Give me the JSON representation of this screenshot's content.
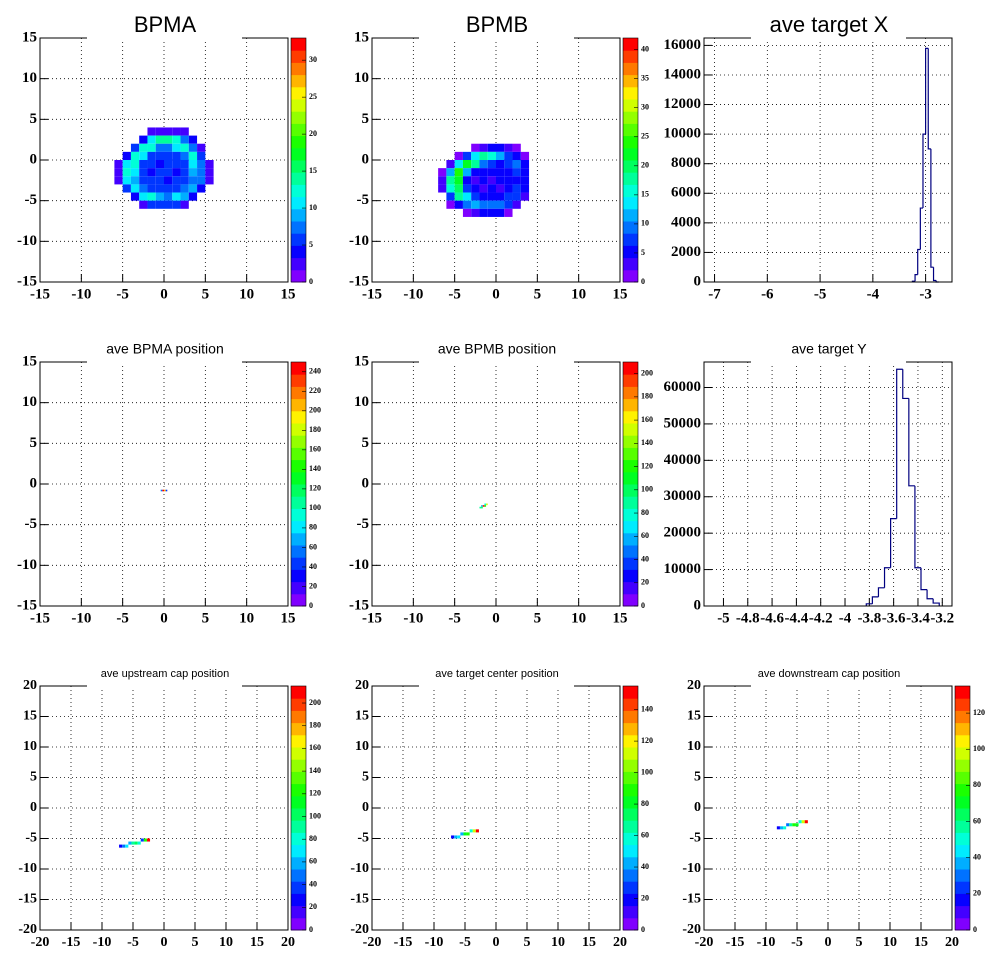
{
  "chart_data": [
    {
      "type": "heatmap",
      "title": "BPMA",
      "xlim": [
        -15,
        15
      ],
      "ylim": [
        -15,
        15
      ],
      "xticks": [
        -15,
        -10,
        -5,
        0,
        5,
        10,
        15
      ],
      "yticks": [
        -15,
        -10,
        -5,
        0,
        5,
        10,
        15
      ],
      "grid": true,
      "x": [
        -5.5,
        -4.5,
        -3.5,
        -2.5,
        -1.5,
        -0.5,
        0.5,
        1.5,
        2.5,
        3.5,
        4.5,
        5.5
      ],
      "y": [
        3.5,
        2.5,
        1.5,
        0.5,
        -0.5,
        -1.5,
        -2.5,
        -3.5,
        -4.5,
        -5.5
      ],
      "z": [
        [
          0,
          0,
          0,
          0,
          2,
          3,
          3,
          3,
          2,
          0,
          0,
          0
        ],
        [
          0,
          0,
          0,
          4,
          10,
          14,
          14,
          12,
          8,
          4,
          0,
          0
        ],
        [
          0,
          0,
          5,
          12,
          12,
          8,
          8,
          10,
          12,
          8,
          3,
          0
        ],
        [
          0,
          4,
          12,
          10,
          6,
          5,
          6,
          5,
          7,
          12,
          5,
          0
        ],
        [
          3,
          10,
          12,
          6,
          5,
          4,
          5,
          6,
          5,
          10,
          8,
          2
        ],
        [
          3,
          12,
          10,
          5,
          4,
          5,
          5,
          4,
          6,
          9,
          8,
          2
        ],
        [
          2,
          10,
          9,
          5,
          6,
          5,
          4,
          5,
          5,
          8,
          7,
          2
        ],
        [
          0,
          5,
          10,
          8,
          5,
          6,
          5,
          6,
          7,
          9,
          4,
          0
        ],
        [
          0,
          0,
          4,
          10,
          12,
          9,
          8,
          10,
          9,
          4,
          0,
          0
        ],
        [
          0,
          0,
          0,
          2,
          5,
          6,
          6,
          5,
          2,
          0,
          0,
          0
        ]
      ],
      "zlim": [
        0,
        33
      ],
      "zticks": [
        0,
        5,
        10,
        15,
        20,
        25,
        30
      ]
    },
    {
      "type": "heatmap",
      "title": "BPMB",
      "xlim": [
        -15,
        15
      ],
      "ylim": [
        -15,
        15
      ],
      "xticks": [
        -15,
        -10,
        -5,
        0,
        5,
        10,
        15
      ],
      "yticks": [
        -15,
        -10,
        -5,
        0,
        5,
        10,
        15
      ],
      "grid": true,
      "x": [
        -6.5,
        -5.5,
        -4.5,
        -3.5,
        -2.5,
        -1.5,
        -0.5,
        0.5,
        1.5,
        2.5,
        3.5,
        4.5
      ],
      "y": [
        1.5,
        0.5,
        -0.5,
        -1.5,
        -2.5,
        -3.5,
        -4.5,
        -5.5,
        -6.5
      ],
      "z": [
        [
          0,
          0,
          0,
          0,
          2,
          4,
          5,
          5,
          4,
          2,
          0,
          0
        ],
        [
          0,
          0,
          2,
          8,
          14,
          18,
          16,
          12,
          8,
          5,
          2,
          0
        ],
        [
          0,
          3,
          14,
          22,
          18,
          10,
          7,
          6,
          8,
          10,
          5,
          0
        ],
        [
          2,
          12,
          25,
          12,
          6,
          5,
          5,
          6,
          5,
          8,
          6,
          0
        ],
        [
          3,
          18,
          22,
          6,
          4,
          5,
          4,
          5,
          5,
          6,
          6,
          0
        ],
        [
          3,
          16,
          20,
          8,
          5,
          4,
          5,
          4,
          6,
          7,
          5,
          0
        ],
        [
          0,
          8,
          18,
          14,
          7,
          5,
          5,
          6,
          7,
          8,
          3,
          0
        ],
        [
          0,
          2,
          6,
          10,
          12,
          10,
          9,
          10,
          8,
          3,
          0,
          0
        ],
        [
          0,
          0,
          0,
          2,
          4,
          6,
          6,
          5,
          2,
          0,
          0,
          0
        ]
      ],
      "zlim": [
        0,
        42
      ],
      "zticks": [
        0,
        5,
        10,
        15,
        20,
        25,
        30,
        35,
        40
      ]
    },
    {
      "type": "histogram",
      "title": "ave target X",
      "xlim": [
        -7.2,
        -2.5
      ],
      "ylim": [
        0,
        16500
      ],
      "xticks": [
        -7,
        -6,
        -5,
        -4,
        -3
      ],
      "yticks": [
        0,
        2000,
        4000,
        6000,
        8000,
        10000,
        12000,
        14000,
        16000
      ],
      "grid": true,
      "bins": [
        -3.25,
        -3.2,
        -3.15,
        -3.1,
        -3.05,
        -3.0,
        -2.95,
        -2.9,
        -2.85,
        -2.8,
        -2.75
      ],
      "counts": [
        50,
        500,
        2200,
        5000,
        10000,
        15800,
        9000,
        1000,
        100,
        0
      ],
      "color": "#000080"
    },
    {
      "type": "heatmap",
      "title": "ave BPMA position",
      "xlim": [
        -15,
        15
      ],
      "ylim": [
        -15,
        15
      ],
      "xticks": [
        -15,
        -10,
        -5,
        0,
        5,
        10,
        15
      ],
      "yticks": [
        -15,
        -10,
        -5,
        0,
        5,
        10,
        15
      ],
      "grid": true,
      "x": [
        -0.3,
        -0.1,
        0.1,
        0.3
      ],
      "y": [
        -0.8
      ],
      "z": [
        [
          60,
          240,
          200,
          40
        ]
      ],
      "zlim": [
        0,
        250
      ],
      "zticks": [
        0,
        20,
        40,
        60,
        80,
        100,
        120,
        140,
        160,
        180,
        200,
        220,
        240
      ]
    },
    {
      "type": "heatmap",
      "title": "ave BPMB position",
      "xlim": [
        -15,
        15
      ],
      "ylim": [
        -15,
        15
      ],
      "xticks": [
        -15,
        -10,
        -5,
        0,
        5,
        10,
        15
      ],
      "yticks": [
        -15,
        -10,
        -5,
        0,
        5,
        10,
        15
      ],
      "grid": true,
      "x": [
        -1.9,
        -1.7,
        -1.5,
        -1.3,
        -1.1
      ],
      "y": [
        -2.5,
        -2.7,
        -2.9
      ],
      "z": [
        [
          0,
          0,
          0,
          80,
          150
        ],
        [
          0,
          60,
          200,
          120,
          0
        ],
        [
          90,
          100,
          0,
          0,
          0
        ]
      ],
      "zlim": [
        0,
        210
      ],
      "zticks": [
        0,
        20,
        40,
        60,
        80,
        100,
        120,
        140,
        160,
        180,
        200
      ]
    },
    {
      "type": "histogram",
      "title": "ave target Y",
      "xlim": [
        -5.16,
        -3.12
      ],
      "ylim": [
        0,
        67000
      ],
      "xticks": [
        -5,
        -4.8,
        -4.6,
        -4.4,
        -4.2,
        -4,
        -3.8,
        -3.6,
        -3.4,
        -3.2
      ],
      "yticks": [
        0,
        10000,
        20000,
        30000,
        40000,
        50000,
        60000
      ],
      "grid": true,
      "bins": [
        -3.825,
        -3.775,
        -3.725,
        -3.675,
        -3.625,
        -3.575,
        -3.525,
        -3.475,
        -3.425,
        -3.375,
        -3.325,
        -3.275,
        -3.225
      ],
      "counts": [
        600,
        2500,
        5000,
        10500,
        24000,
        65000,
        57000,
        33000,
        10500,
        4500,
        2000,
        800
      ],
      "color": "#000080"
    },
    {
      "type": "heatmap",
      "title": "ave upstream cap position",
      "xlim": [
        -20,
        20
      ],
      "ylim": [
        -20,
        20
      ],
      "xticks": [
        -20,
        -15,
        -10,
        -5,
        0,
        5,
        10,
        15,
        20
      ],
      "yticks": [
        -20,
        -15,
        -10,
        -5,
        0,
        5,
        10,
        15,
        20
      ],
      "grid": true,
      "x": [
        -7,
        -6.5,
        -6,
        -5.5,
        -5,
        -4.5,
        -4,
        -3.5,
        -3,
        -2.5
      ],
      "y": [
        -5.25,
        -5.75,
        -6.25
      ],
      "z": [
        [
          0,
          0,
          0,
          0,
          0,
          0,
          0,
          40,
          120,
          210
        ],
        [
          0,
          0,
          0,
          60,
          90,
          100,
          80,
          0,
          0,
          0
        ],
        [
          30,
          50,
          70,
          0,
          0,
          0,
          0,
          0,
          0,
          0
        ]
      ],
      "zlim": [
        0,
        215
      ],
      "zticks": [
        0,
        20,
        40,
        60,
        80,
        100,
        120,
        140,
        160,
        180,
        200
      ]
    },
    {
      "type": "heatmap",
      "title": "ave target center  position",
      "xlim": [
        -20,
        20
      ],
      "ylim": [
        -20,
        20
      ],
      "xticks": [
        -20,
        -15,
        -10,
        -5,
        0,
        5,
        10,
        15,
        20
      ],
      "yticks": [
        -20,
        -15,
        -10,
        -5,
        0,
        5,
        10,
        15,
        20
      ],
      "grid": true,
      "x": [
        -7,
        -6.5,
        -6,
        -5.5,
        -5,
        -4.5,
        -4,
        -3.5,
        -3
      ],
      "y": [
        -3.75,
        -4.25,
        -4.75
      ],
      "z": [
        [
          0,
          0,
          0,
          0,
          0,
          0,
          60,
          110,
          150
        ],
        [
          0,
          0,
          0,
          40,
          80,
          90,
          0,
          0,
          0
        ],
        [
          20,
          40,
          50,
          0,
          0,
          0,
          0,
          0,
          0
        ]
      ],
      "zlim": [
        0,
        155
      ],
      "zticks": [
        0,
        20,
        40,
        60,
        80,
        100,
        120,
        140
      ]
    },
    {
      "type": "heatmap",
      "title": "ave downstream cap position",
      "xlim": [
        -20,
        20
      ],
      "ylim": [
        -20,
        20
      ],
      "xticks": [
        -20,
        -15,
        -10,
        -5,
        0,
        5,
        10,
        15,
        20
      ],
      "yticks": [
        -20,
        -15,
        -10,
        -5,
        0,
        5,
        10,
        15,
        20
      ],
      "grid": true,
      "x": [
        -8,
        -7.5,
        -7,
        -6.5,
        -6,
        -5.5,
        -5,
        -4.5,
        -4,
        -3.5
      ],
      "y": [
        -2.25,
        -2.75,
        -3.25
      ],
      "z": [
        [
          0,
          0,
          0,
          0,
          0,
          0,
          0,
          50,
          100,
          130
        ],
        [
          0,
          0,
          0,
          30,
          60,
          80,
          70,
          0,
          0,
          0
        ],
        [
          20,
          40,
          50,
          0,
          0,
          0,
          0,
          0,
          0,
          0
        ]
      ],
      "zlim": [
        0,
        135
      ],
      "zticks": [
        0,
        20,
        40,
        60,
        80,
        100,
        120
      ]
    }
  ]
}
